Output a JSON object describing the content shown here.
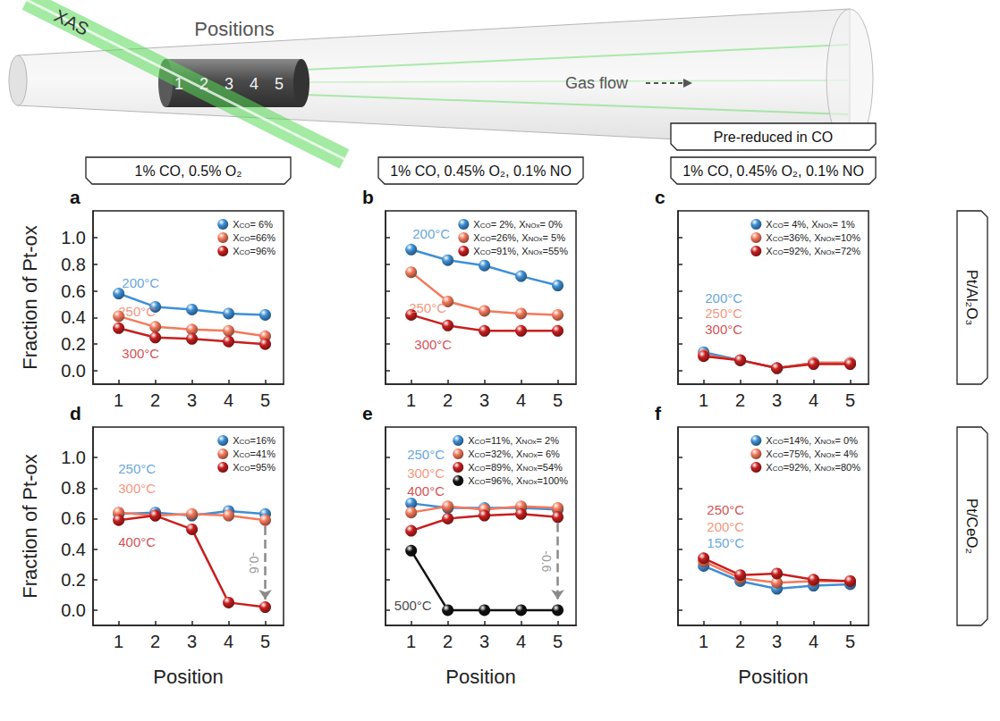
{
  "figure": {
    "schematic": {
      "beam": "XAS",
      "title": "Positions",
      "positions": [
        "1",
        "2",
        "3",
        "4",
        "5"
      ],
      "flow": "Gas flow"
    },
    "column_heads": [
      {
        "text": "1% CO, 0.5% O₂"
      },
      {
        "text": "1% CO, 0.45% O₂, 0.1% NO"
      },
      {
        "text": "1% CO, 0.45% O₂, 0.1% NO",
        "above": "Pre-reduced in CO"
      }
    ],
    "row_heads": [
      "Pt/Al₂O₃",
      "Pt/CeO₂"
    ]
  },
  "chart_data": [
    {
      "type": "line",
      "letter": "a",
      "ylabel": "Fraction of Pt-ox",
      "x": [
        1,
        2,
        3,
        4,
        5
      ],
      "xlim": [
        0.3,
        5.5
      ],
      "xticks": [
        1,
        2,
        3,
        4,
        5
      ],
      "ylim": [
        -0.1,
        1.2
      ],
      "yticks": [
        {
          "value": 0,
          "label": "0.0"
        },
        0.2,
        0.4,
        0.6,
        0.8,
        {
          "value": 1,
          "label": "1.0"
        }
      ],
      "grid": false,
      "legend": "upper right",
      "marker": "circle",
      "series": [
        {
          "name": "XCO= 6%",
          "annotation": "200°C",
          "color": "#3d8fd6",
          "values": [
            0.58,
            0.48,
            0.46,
            0.43,
            0.42
          ]
        },
        {
          "name": "XCO=66%",
          "annotation": "250°C",
          "color": "#f4795b",
          "values": [
            0.41,
            0.33,
            0.31,
            0.3,
            0.26
          ]
        },
        {
          "name": "XCO=96%",
          "annotation": "300°C",
          "color": "#c81e1e",
          "values": [
            0.32,
            0.25,
            0.24,
            0.22,
            0.2
          ]
        }
      ]
    },
    {
      "type": "line",
      "letter": "b",
      "x": [
        1,
        2,
        3,
        4,
        5
      ],
      "xlim": [
        0.3,
        5.5
      ],
      "xticks": [
        1,
        2,
        3,
        4,
        5
      ],
      "ylim": [
        -0.1,
        1.2
      ],
      "yticks": [
        {
          "value": 0,
          "label": "0.0"
        },
        0.2,
        0.4,
        0.6,
        0.8,
        {
          "value": 1,
          "label": "1.0"
        }
      ],
      "grid": false,
      "legend": "upper right",
      "marker": "circle",
      "tick_labels": "x",
      "series": [
        {
          "name": "XCO= 2%, XNOx= 0%",
          "annotation": "200°C",
          "color": "#3d8fd6",
          "values": [
            0.91,
            0.83,
            0.79,
            0.71,
            0.64
          ]
        },
        {
          "name": "XCO=26%, XNOx= 5%",
          "annotation": "250°C",
          "color": "#f4795b",
          "values": [
            0.74,
            0.52,
            0.45,
            0.43,
            0.42
          ]
        },
        {
          "name": "XCO=91%, XNOx=55%",
          "annotation": "300°C",
          "color": "#c81e1e",
          "values": [
            0.42,
            0.34,
            0.3,
            0.3,
            0.3
          ]
        }
      ]
    },
    {
      "type": "line",
      "letter": "c",
      "x": [
        1,
        2,
        3,
        4,
        5
      ],
      "xlim": [
        0.3,
        5.5
      ],
      "xticks": [
        1,
        2,
        3,
        4,
        5
      ],
      "ylim": [
        -0.1,
        1.2
      ],
      "yticks": [
        {
          "value": 0,
          "label": "0.0"
        },
        0.2,
        0.4,
        0.6,
        0.8,
        {
          "value": 1,
          "label": "1.0"
        }
      ],
      "grid": false,
      "legend": "upper right",
      "marker": "circle",
      "tick_labels": "x",
      "series": [
        {
          "name": "XCO= 4%, XNOx= 1%",
          "annotation": "200°C",
          "color": "#3d8fd6",
          "values": [
            0.14,
            0.08,
            0.02,
            0.06,
            0.06
          ]
        },
        {
          "name": "XCO=36%, XNOx=10%",
          "annotation": "250°C",
          "color": "#f4795b",
          "values": [
            0.12,
            0.08,
            0.02,
            0.06,
            0.06
          ]
        },
        {
          "name": "XCO=92%, XNOx=72%",
          "annotation": "300°C",
          "color": "#c81e1e",
          "values": [
            0.11,
            0.08,
            0.02,
            0.05,
            0.05
          ]
        }
      ]
    },
    {
      "type": "line",
      "letter": "d",
      "ylabel": "Fraction of Pt-ox",
      "xlabel": "Position",
      "x": [
        1,
        2,
        3,
        4,
        5
      ],
      "xlim": [
        0.3,
        5.5
      ],
      "xticks": [
        1,
        2,
        3,
        4,
        5
      ],
      "ylim": [
        -0.1,
        1.2
      ],
      "yticks": [
        {
          "value": 0,
          "label": "0.0"
        },
        0.2,
        0.4,
        0.6,
        0.8,
        {
          "value": 1,
          "label": "1.0"
        }
      ],
      "grid": false,
      "legend": "upper right",
      "marker": "circle",
      "series": [
        {
          "name": "XCO=16%",
          "annotation": "250°C",
          "color": "#3d8fd6",
          "values": [
            0.63,
            0.64,
            0.62,
            0.65,
            0.63
          ]
        },
        {
          "name": "XCO=41%",
          "annotation": "300°C",
          "color": "#f4795b",
          "values": [
            0.64,
            0.62,
            0.63,
            0.62,
            0.59
          ]
        },
        {
          "name": "XCO=95%",
          "annotation": "400°C",
          "color": "#c81e1e",
          "values": [
            0.59,
            0.62,
            0.53,
            0.05,
            0.02
          ]
        }
      ],
      "annotations": [
        {
          "text": "-0.6",
          "x": 5,
          "y_from": 0.55,
          "y_to": 0.07
        }
      ]
    },
    {
      "type": "line",
      "letter": "e",
      "xlabel": "Position",
      "x": [
        1,
        2,
        3,
        4,
        5
      ],
      "xlim": [
        0.3,
        5.5
      ],
      "xticks": [
        1,
        2,
        3,
        4,
        5
      ],
      "ylim": [
        -0.1,
        1.2
      ],
      "yticks": [
        {
          "value": 0,
          "label": "0.0"
        },
        0.2,
        0.4,
        0.6,
        0.8,
        {
          "value": 1,
          "label": "1.0"
        }
      ],
      "grid": false,
      "legend": "upper right",
      "marker": "circle",
      "tick_labels": "x",
      "series": [
        {
          "name": "XCO=11%, XNOx= 2%",
          "annotation": "250°C",
          "color": "#3d8fd6",
          "values": [
            0.7,
            0.67,
            0.67,
            0.67,
            0.66
          ]
        },
        {
          "name": "XCO=32%, XNOx= 6%",
          "annotation": "300°C",
          "color": "#f4795b",
          "values": [
            0.64,
            0.68,
            0.66,
            0.68,
            0.67
          ]
        },
        {
          "name": "XCO=89%, XNOx=54%",
          "annotation": "400°C",
          "color": "#c81e1e",
          "values": [
            0.52,
            0.6,
            0.62,
            0.63,
            0.61
          ]
        },
        {
          "name": "XCO=96%, XNOx=100%",
          "annotation": "500°C",
          "color": "#111111",
          "values": [
            0.39,
            0.0,
            0.0,
            0.0,
            0.0
          ]
        }
      ],
      "annotations": [
        {
          "text": "-0.6",
          "x": 5,
          "y_from": 0.57,
          "y_to": 0.07
        }
      ]
    },
    {
      "type": "line",
      "letter": "f",
      "xlabel": "Position",
      "x": [
        1,
        2,
        3,
        4,
        5
      ],
      "xlim": [
        0.3,
        5.5
      ],
      "xticks": [
        1,
        2,
        3,
        4,
        5
      ],
      "ylim": [
        -0.1,
        1.2
      ],
      "yticks": [
        {
          "value": 0,
          "label": "0.0"
        },
        0.2,
        0.4,
        0.6,
        0.8,
        {
          "value": 1,
          "label": "1.0"
        }
      ],
      "grid": false,
      "legend": "upper right",
      "marker": "circle",
      "tick_labels": "x",
      "series": [
        {
          "name": "XCO=14%, XNOx= 0%",
          "annotation": "150°C",
          "color": "#3d8fd6",
          "values": [
            0.29,
            0.19,
            0.14,
            0.16,
            0.17
          ]
        },
        {
          "name": "XCO=75%, XNOx= 4%",
          "annotation": "200°C",
          "color": "#f4795b",
          "values": [
            0.32,
            0.21,
            0.18,
            0.19,
            0.19
          ]
        },
        {
          "name": "XCO=92%, XNOx=80%",
          "annotation": "250°C",
          "color": "#c81e1e",
          "values": [
            0.34,
            0.23,
            0.24,
            0.2,
            0.19
          ]
        }
      ]
    }
  ]
}
